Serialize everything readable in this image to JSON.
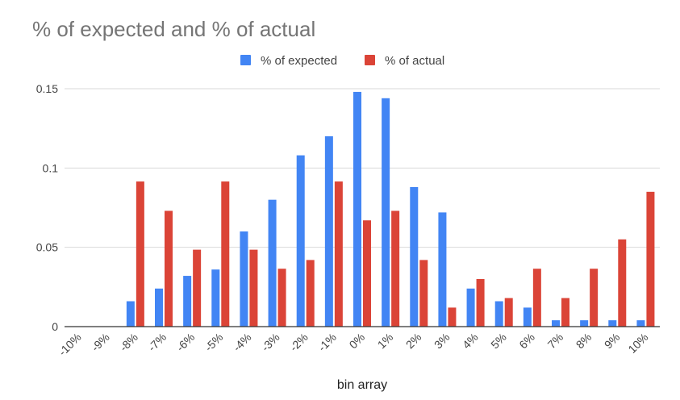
{
  "chart_data": {
    "type": "bar",
    "title": "% of expected and % of actual",
    "xlabel": "bin array",
    "ylabel": "",
    "ylim": [
      0,
      0.15
    ],
    "yticks": [
      "0",
      "0.05",
      "0.1",
      "0.15"
    ],
    "ytick_values": [
      0,
      0.05,
      0.1,
      0.15
    ],
    "legend_position": "top",
    "grid": true,
    "categories": [
      "-10%",
      "-9%",
      "-8%",
      "-7%",
      "-6%",
      "-5%",
      "-4%",
      "-3%",
      "-2%",
      "-1%",
      "0%",
      "1%",
      "2%",
      "3%",
      "4%",
      "5%",
      "6%",
      "7%",
      "8%",
      "9%",
      "10%"
    ],
    "series": [
      {
        "name": "% of expected",
        "color": "#4285f4",
        "values": [
          0,
          0,
          0.016,
          0.024,
          0.032,
          0.036,
          0.06,
          0.08,
          0.108,
          0.12,
          0.148,
          0.144,
          0.088,
          0.072,
          0.024,
          0.016,
          0.012,
          0.004,
          0.004,
          0.004,
          0.004
        ]
      },
      {
        "name": "% of actual",
        "color": "#db4437",
        "values": [
          0,
          0,
          0.0915,
          0.073,
          0.0485,
          0.0915,
          0.0485,
          0.0365,
          0.042,
          0.0915,
          0.067,
          0.073,
          0.042,
          0.012,
          0.03,
          0.018,
          0.0365,
          0.018,
          0.0365,
          0.055,
          0.085
        ]
      }
    ]
  }
}
